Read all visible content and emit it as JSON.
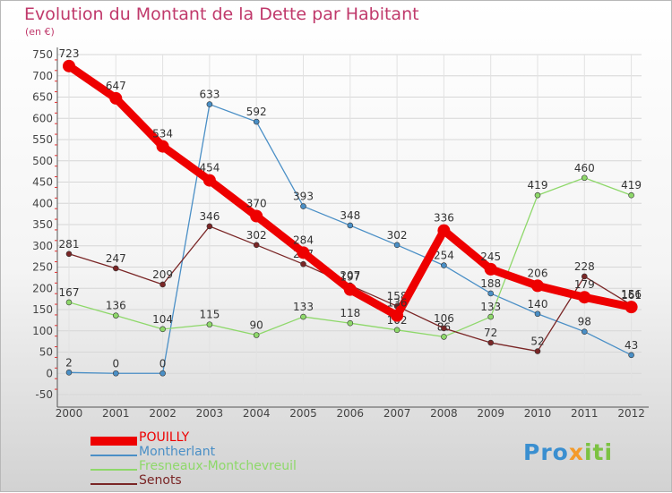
{
  "chart_data": {
    "type": "line",
    "title": "Evolution du Montant de la Dette par Habitant",
    "subtitle": "(en €)",
    "x": [
      "2000",
      "2001",
      "2002",
      "2003",
      "2004",
      "2005",
      "2006",
      "2007",
      "2008",
      "2009",
      "2010",
      "2011",
      "2012"
    ],
    "ylim": [
      -50,
      750
    ],
    "yticks": [
      -50,
      0,
      50,
      100,
      150,
      200,
      250,
      300,
      350,
      400,
      450,
      500,
      550,
      600,
      650,
      700,
      750
    ],
    "grid": true,
    "legend_position": "bottom-left",
    "series": [
      {
        "name": "Montherlant",
        "color": "#4a8fc6",
        "values": [
          2,
          0,
          0,
          633,
          592,
          393,
          348,
          302,
          254,
          188,
          140,
          98,
          43
        ],
        "labels": [
          "2",
          "0",
          "0",
          "633",
          "592",
          "393",
          "348",
          "302",
          "254",
          "188",
          "140",
          "98",
          "43"
        ]
      },
      {
        "name": "Fresneaux-Montchevreuil",
        "color": "#8ed86a",
        "values": [
          167,
          136,
          104,
          115,
          90,
          133,
          118,
          102,
          86,
          133,
          419,
          460,
          419
        ],
        "labels": [
          "167",
          "136",
          "104",
          "115",
          "90",
          "133",
          "118",
          "102",
          "86",
          "133",
          "419",
          "460",
          "419"
        ]
      },
      {
        "name": "Senots",
        "color": "#7a2626",
        "values": [
          281,
          247,
          209,
          346,
          302,
          257,
          207,
          158,
          106,
          72,
          52,
          228,
          161
        ],
        "labels": [
          "281",
          "247",
          "209",
          "346",
          "302",
          "257",
          "207",
          "158",
          "106",
          "72",
          "52",
          "228",
          "161"
        ]
      },
      {
        "name": "POUILLY",
        "color": "#ee0000",
        "values": [
          723,
          647,
          534,
          454,
          370,
          284,
          197,
          136,
          336,
          245,
          206,
          179,
          156
        ],
        "labels": [
          "723",
          "647",
          "534",
          "454",
          "370",
          "284",
          "197",
          "136",
          "336",
          "245",
          "206",
          "179",
          "156"
        ]
      }
    ]
  },
  "legend": [
    {
      "name": "POUILLY",
      "color": "#ee0000"
    },
    {
      "name": "Montherlant",
      "color": "#4a8fc6"
    },
    {
      "name": "Fresneaux-Montchevreuil",
      "color": "#8ed86a"
    },
    {
      "name": "Senots",
      "color": "#7a2626"
    }
  ],
  "logo_text": "Proxiti",
  "logo_parts": [
    "Pro",
    "x",
    "iti"
  ]
}
